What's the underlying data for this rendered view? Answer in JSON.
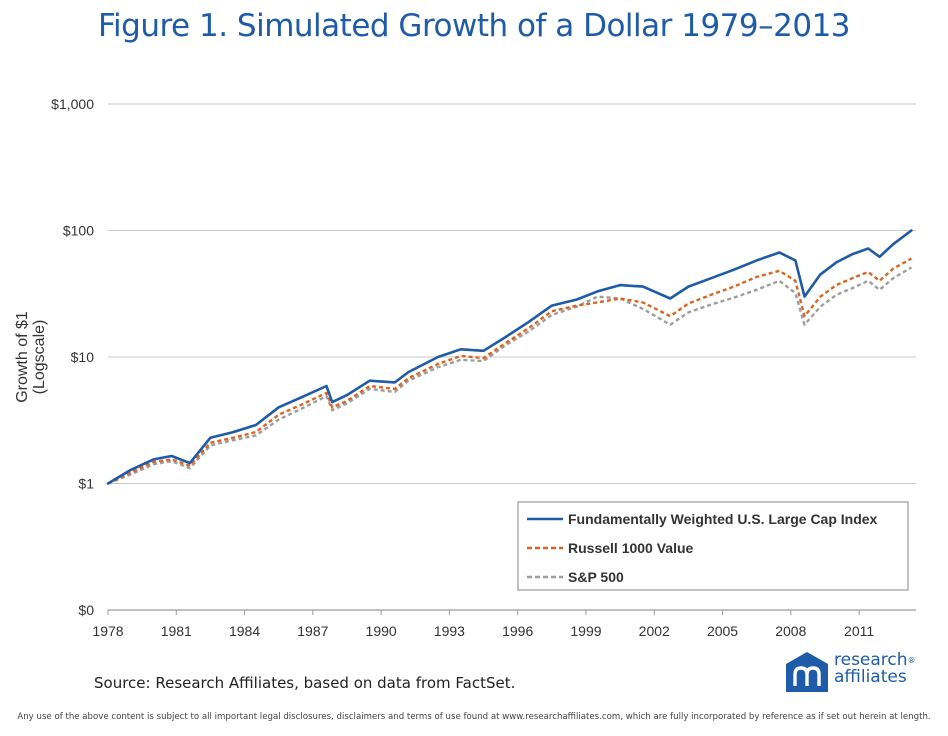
{
  "title": "Figure 1. Simulated Growth of a Dollar 1979–2013",
  "source": "Source: Research Affiliates, based on data from FactSet.",
  "disclaimer": "Any use of the above content is subject to all important legal disclosures, disclaimers and terms of use found at www.researchaffiliates.com, which are fully incorporated by reference as if set out herein at length.",
  "logo": {
    "line1": "research",
    "line2": "affiliates",
    "trademark": "®"
  },
  "colors": {
    "fundamental": "#1e5ba8",
    "russell": "#e0621e",
    "sp500": "#9e9e9e",
    "grid": "#c8c8c8"
  },
  "chart_data": {
    "type": "line",
    "title": "Figure 1. Simulated Growth of a Dollar 1979–2013",
    "xlabel": "",
    "ylabel": "Growth of $1 (Logscale)",
    "ylabel_lines": [
      "Growth of $1",
      "(Logscale)"
    ],
    "yscale": "log",
    "ylim": [
      0.1,
      1000
    ],
    "xlim": [
      1978,
      2013.5
    ],
    "ytick_values": [
      0.1,
      1,
      10,
      100,
      1000
    ],
    "ytick_labels": [
      "$0",
      "$1",
      "$10",
      "$100",
      "$1,000"
    ],
    "xtick_values": [
      1978,
      1981,
      1984,
      1987,
      1990,
      1993,
      1996,
      1999,
      2002,
      2005,
      2008,
      2011
    ],
    "xtick_labels": [
      "1978",
      "1981",
      "1984",
      "1987",
      "1990",
      "1993",
      "1996",
      "1999",
      "2002",
      "2005",
      "2008",
      "2011"
    ],
    "grid": true,
    "legend_position": "bottom-right",
    "x": [
      1978,
      1979,
      1980,
      1980.8,
      1981.6,
      1982.5,
      1983.5,
      1984.5,
      1985.5,
      1986.5,
      1987.6,
      1987.85,
      1988.5,
      1989.5,
      1990.6,
      1991.2,
      1992.5,
      1993.5,
      1994.5,
      1995.5,
      1996.5,
      1997.5,
      1998.6,
      1999.5,
      2000.5,
      2001.5,
      2002.7,
      2003.5,
      2004.5,
      2005.5,
      2006.5,
      2007.5,
      2008.2,
      2008.6,
      2009.3,
      2010,
      2010.7,
      2011.4,
      2011.9,
      2012.5,
      2013.3
    ],
    "series": [
      {
        "name": "Fundamentally Weighted U.S. Large Cap Index",
        "style": "solid",
        "values": [
          1.0,
          1.28,
          1.55,
          1.65,
          1.45,
          2.3,
          2.55,
          2.9,
          4.0,
          4.8,
          5.9,
          4.4,
          5.0,
          6.5,
          6.3,
          7.6,
          10.0,
          11.5,
          11.2,
          14.5,
          19.0,
          25.5,
          28.5,
          33.0,
          37.0,
          36.0,
          29.0,
          36.0,
          42.0,
          49.0,
          58.0,
          67.0,
          58.0,
          30.0,
          45.0,
          56.0,
          65.0,
          72.0,
          62.0,
          78.0,
          100.0
        ]
      },
      {
        "name": "Russell 1000 Value",
        "style": "dashed",
        "values": [
          1.0,
          1.22,
          1.48,
          1.55,
          1.38,
          2.1,
          2.3,
          2.55,
          3.5,
          4.2,
          5.2,
          4.0,
          4.5,
          5.9,
          5.6,
          6.8,
          8.8,
          10.2,
          9.8,
          13.0,
          17.0,
          23.0,
          25.5,
          27.0,
          29.0,
          27.0,
          21.0,
          26.5,
          31.0,
          36.0,
          43.0,
          48.0,
          40.0,
          21.0,
          30.0,
          37.0,
          42.0,
          47.0,
          40.0,
          50.0,
          60.0
        ]
      },
      {
        "name": "S&P 500",
        "style": "dashed",
        "values": [
          1.0,
          1.18,
          1.42,
          1.5,
          1.32,
          2.0,
          2.2,
          2.4,
          3.2,
          3.9,
          4.9,
          3.8,
          4.3,
          5.6,
          5.3,
          6.5,
          8.3,
          9.5,
          9.3,
          12.5,
          16.0,
          21.5,
          25.0,
          30.0,
          29.0,
          24.0,
          18.0,
          22.5,
          26.0,
          29.5,
          34.0,
          40.0,
          32.0,
          18.0,
          25.0,
          31.0,
          35.0,
          40.0,
          34.0,
          42.0,
          51.0
        ]
      }
    ]
  }
}
